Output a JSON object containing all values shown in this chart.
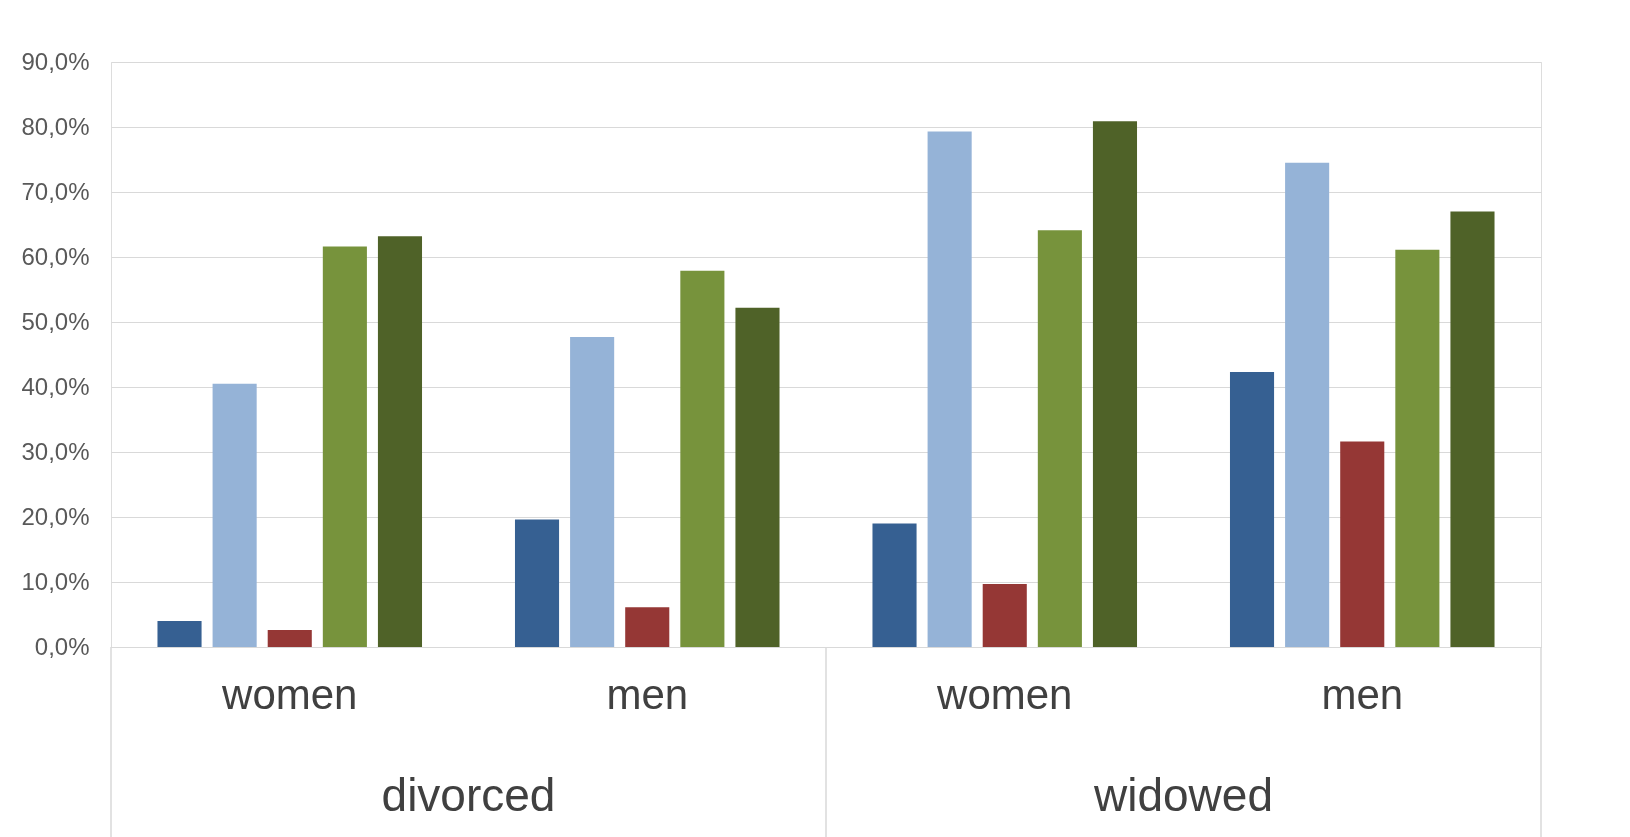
{
  "chart_data": {
    "type": "bar",
    "categories": [
      "women",
      "men",
      "women",
      "men"
    ],
    "series": [
      {
        "color": "#366092",
        "values": [
          4.0,
          19.6,
          19.0,
          42.3
        ]
      },
      {
        "color": "#95b3d7",
        "values": [
          40.5,
          47.7,
          79.3,
          74.5
        ]
      },
      {
        "color": "#953735",
        "values": [
          2.6,
          6.1,
          9.7,
          31.6
        ]
      },
      {
        "color": "#77933c",
        "values": [
          61.6,
          57.9,
          64.1,
          61.1
        ]
      },
      {
        "color": "#4f6228",
        "values": [
          63.2,
          52.2,
          80.9,
          67.0
        ]
      }
    ],
    "ylim": [
      0,
      90
    ],
    "yticks": [
      {
        "value": 0,
        "label": "0,0%"
      },
      {
        "value": 10,
        "label": "10,0%"
      },
      {
        "value": 20,
        "label": "20,0%"
      },
      {
        "value": 30,
        "label": "30,0%"
      },
      {
        "value": 40,
        "label": "40,0%"
      },
      {
        "value": 50,
        "label": "50,0%"
      },
      {
        "value": 60,
        "label": "60,0%"
      },
      {
        "value": 70,
        "label": "70,0%"
      },
      {
        "value": 80,
        "label": "80,0%"
      },
      {
        "value": 90,
        "label": "90,0%"
      }
    ],
    "annotations": [
      "divorced",
      "widowed"
    ],
    "grid": "y",
    "legend": false
  }
}
